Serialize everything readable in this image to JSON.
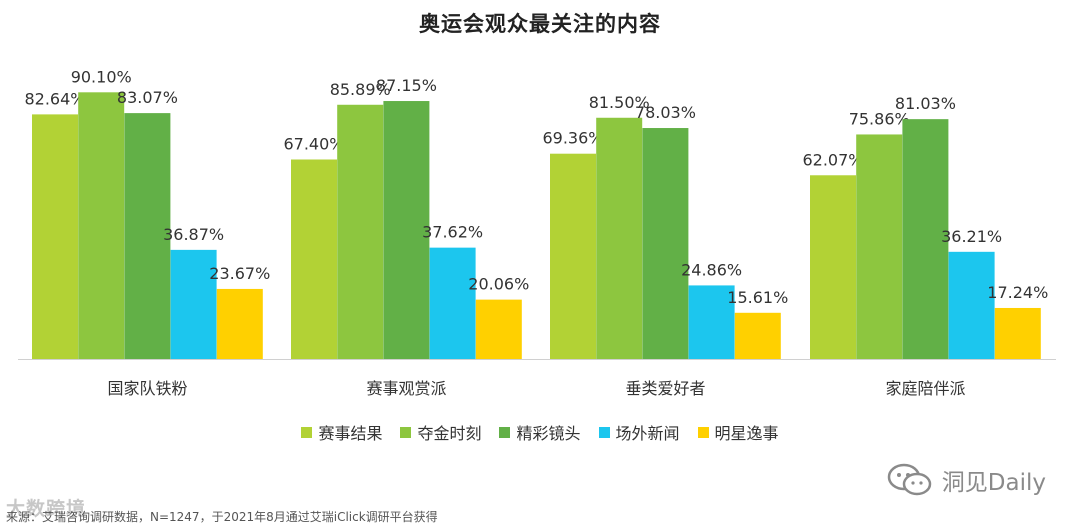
{
  "chart_data": {
    "type": "bar",
    "title": "奥运会观众最关注的内容",
    "categories": [
      "国家队铁粉",
      "赛事观赏派",
      "垂类爱好者",
      "家庭陪伴派"
    ],
    "series": [
      {
        "name": "赛事结果",
        "color": "#b2d235",
        "values": [
          82.64,
          67.4,
          69.36,
          62.07
        ],
        "labels": [
          "82.64%",
          "67.40%",
          "69.36%",
          "62.07%"
        ]
      },
      {
        "name": "夺金时刻",
        "color": "#8dc63f",
        "values": [
          90.1,
          85.89,
          81.5,
          75.86
        ],
        "labels": [
          "90.10%",
          "85.89%",
          "81.50%",
          "75.86%"
        ]
      },
      {
        "name": "精彩镜头",
        "color": "#62b047",
        "values": [
          83.07,
          87.15,
          78.03,
          81.03
        ],
        "labels": [
          "83.07%",
          "87.15%",
          "78.03%",
          "81.03%"
        ]
      },
      {
        "name": "场外新闻",
        "color": "#1cc6ee",
        "values": [
          36.87,
          37.62,
          24.86,
          36.21
        ],
        "labels": [
          "36.87%",
          "37.62%",
          "24.86%",
          "36.21%"
        ]
      },
      {
        "name": "明星逸事",
        "color": "#ffd000",
        "values": [
          23.67,
          20.06,
          15.61,
          17.24
        ],
        "labels": [
          "23.67%",
          "20.06%",
          "15.61%",
          "17.24%"
        ]
      }
    ],
    "ylim": [
      0,
      100
    ],
    "grid": false,
    "legend_position": "bottom"
  },
  "source_note": "来源：艾瑞咨询调研数据，N=1247，于2021年8月通过艾瑞iClick调研平台获得",
  "watermark_left": "大数跨境",
  "watermark_right": "洞见Daily"
}
